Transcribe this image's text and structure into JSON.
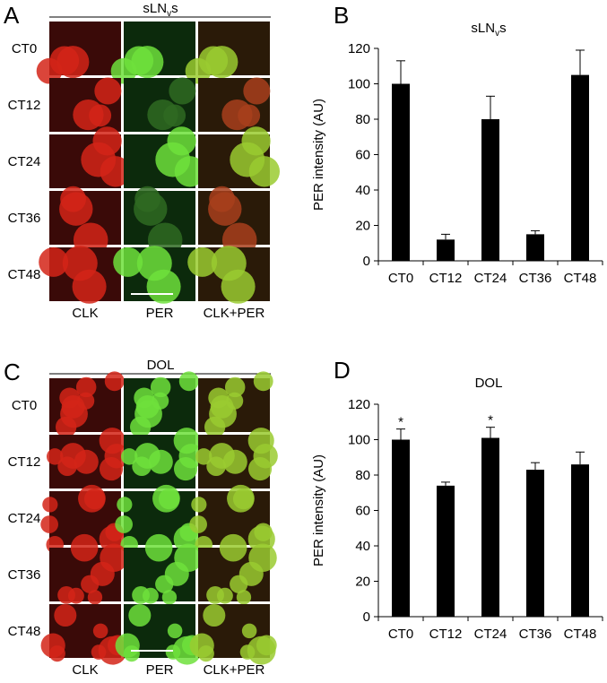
{
  "image_panels": [
    {
      "label": "A",
      "title": "sLN",
      "title_subscript": "v",
      "title_suffix": "s",
      "rows": [
        "CT0",
        "CT12",
        "CT24",
        "CT36",
        "CT48"
      ],
      "columns": [
        "CLK",
        "PER",
        "CLK+PER"
      ]
    },
    {
      "label": "C",
      "title": "DOL",
      "rows": [
        "CT0",
        "CT12",
        "CT24",
        "CT36",
        "CT48"
      ],
      "columns": [
        "CLK",
        "PER",
        "CLK+PER"
      ]
    }
  ],
  "chart_data": [
    {
      "type": "bar",
      "label": "B",
      "title": "sLN",
      "title_subscript": "v",
      "title_suffix": "s",
      "y_label": "PER intensity (AU)",
      "categories": [
        "CT0",
        "CT12",
        "CT24",
        "CT36",
        "CT48"
      ],
      "values": [
        100,
        12,
        80,
        15,
        105
      ],
      "errors": [
        13,
        3,
        13,
        2,
        14
      ],
      "color": "#000000",
      "ylim": [
        0,
        120
      ],
      "yticks": [
        0,
        20,
        40,
        60,
        80,
        100,
        120
      ]
    },
    {
      "type": "bar",
      "label": "D",
      "title": "DOL",
      "y_label": "PER intensity (AU)",
      "categories": [
        "CT0",
        "CT12",
        "CT24",
        "CT36",
        "CT48"
      ],
      "values": [
        100,
        74,
        101,
        83,
        86
      ],
      "errors": [
        6,
        2,
        6,
        4,
        7
      ],
      "annotations": [
        "*",
        null,
        "*",
        null,
        null
      ],
      "color": "#000000",
      "ylim": [
        0,
        120
      ],
      "yticks": [
        0,
        20,
        40,
        60,
        80,
        100,
        120
      ]
    }
  ]
}
